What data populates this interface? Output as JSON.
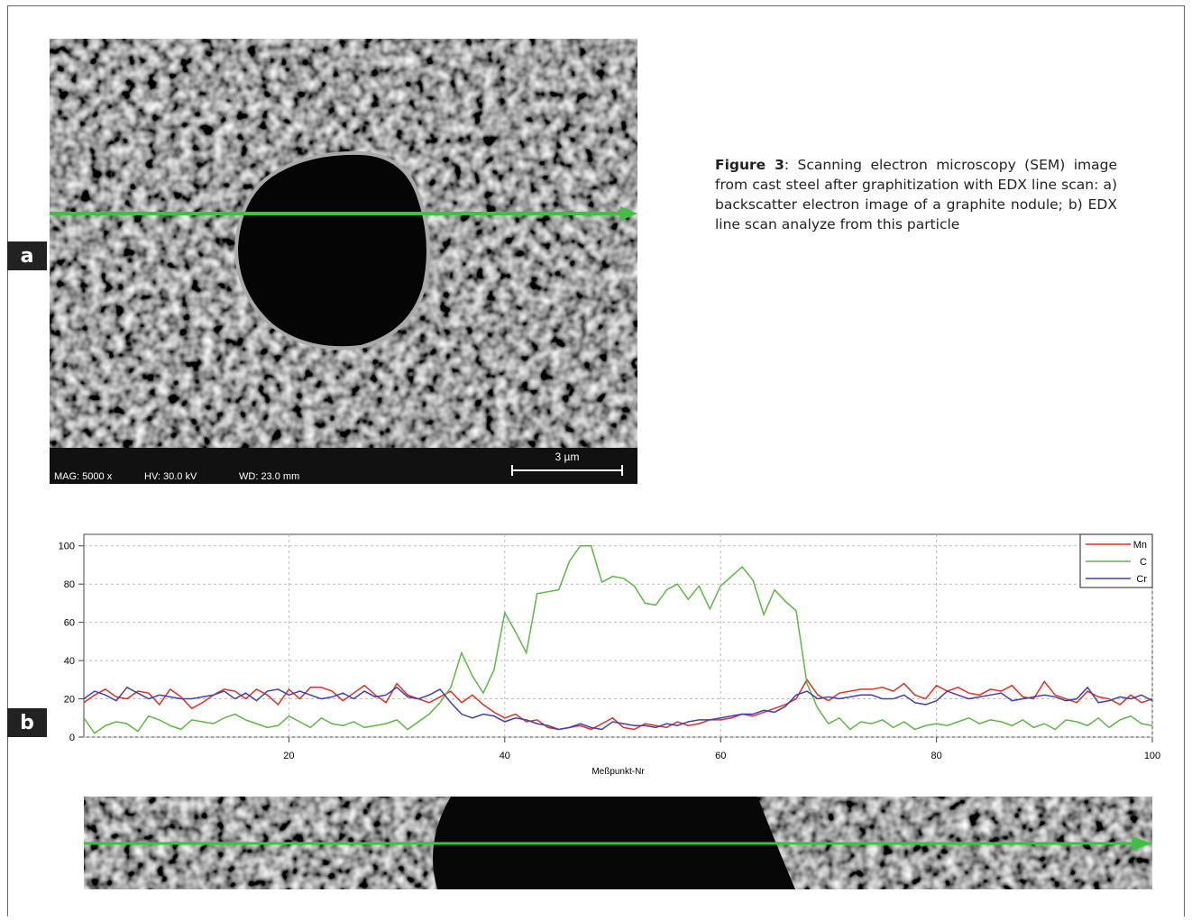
{
  "panel_a": {
    "label": "a",
    "info": [
      "MAG: 5000 x",
      "HV: 30.0 kV",
      "WD: 23.0 mm"
    ],
    "scale_bar": "3 µm"
  },
  "panel_b": {
    "label": "b"
  },
  "caption": {
    "label": "Figure 3",
    "text": ": Scanning electron microscopy (SEM) image from cast steel after graphitization with EDX line scan: a) backscatter electron image of a graphite nodule; b) EDX line scan analyze from this particle"
  },
  "chart_data": {
    "type": "line",
    "x_label": "Meßpunkt-Nr",
    "x": [
      1,
      2,
      3,
      4,
      5,
      6,
      7,
      8,
      9,
      10,
      11,
      12,
      13,
      14,
      15,
      16,
      17,
      18,
      19,
      20,
      21,
      22,
      23,
      24,
      25,
      26,
      27,
      28,
      29,
      30,
      31,
      32,
      33,
      34,
      35,
      36,
      37,
      38,
      39,
      40,
      41,
      42,
      43,
      44,
      45,
      46,
      47,
      48,
      49,
      50,
      51,
      52,
      53,
      54,
      55,
      56,
      57,
      58,
      59,
      60,
      61,
      62,
      63,
      64,
      65,
      66,
      67,
      68,
      69,
      70,
      71,
      72,
      73,
      74,
      75,
      76,
      77,
      78,
      79,
      80,
      81,
      82,
      83,
      84,
      85,
      86,
      87,
      88,
      89,
      90,
      91,
      92,
      93,
      94,
      95,
      96,
      97,
      98,
      99,
      100
    ],
    "series": [
      {
        "name": "Mn",
        "color": "#e03020",
        "values": [
          18,
          22,
          25,
          21,
          20,
          24,
          23,
          17,
          25,
          21,
          15,
          18,
          22,
          25,
          24,
          20,
          25,
          22,
          17,
          25,
          20,
          26,
          26,
          24,
          19,
          23,
          27,
          22,
          18,
          28,
          22,
          20,
          18,
          21,
          24,
          18,
          22,
          17,
          13,
          10,
          12,
          8,
          9,
          5,
          4,
          5,
          6,
          4,
          7,
          10,
          5,
          4,
          7,
          6,
          5,
          8,
          6,
          7,
          9,
          9,
          10,
          12,
          11,
          13,
          15,
          17,
          20,
          30,
          22,
          19,
          23,
          24,
          25,
          25,
          26,
          24,
          28,
          22,
          20,
          27,
          24,
          26,
          23,
          22,
          25,
          24,
          27,
          21,
          20,
          29,
          22,
          20,
          18,
          24,
          21,
          20,
          17,
          22,
          18,
          20
        ]
      },
      {
        "name": "C",
        "color": "#5cb840",
        "values": [
          10,
          2,
          6,
          8,
          7,
          3,
          11,
          9,
          6,
          4,
          9,
          8,
          7,
          10,
          12,
          9,
          7,
          5,
          6,
          11,
          8,
          5,
          10,
          7,
          6,
          8,
          5,
          6,
          7,
          9,
          4,
          8,
          12,
          18,
          26,
          44,
          32,
          23,
          35,
          65,
          55,
          44,
          75,
          76,
          77,
          92,
          100,
          100,
          81,
          84,
          83,
          79,
          70,
          69,
          77,
          80,
          72,
          79,
          67,
          79,
          84,
          89,
          82,
          64,
          77,
          71,
          66,
          28,
          15,
          7,
          10,
          4,
          8,
          7,
          9,
          5,
          8,
          4,
          6,
          7,
          6,
          8,
          10,
          7,
          9,
          8,
          6,
          9,
          5,
          7,
          4,
          9,
          8,
          6,
          10,
          5,
          9,
          11,
          7,
          6
        ]
      },
      {
        "name": "Cr",
        "color": "#4040b0",
        "values": [
          20,
          24,
          22,
          19,
          26,
          23,
          20,
          22,
          21,
          20,
          20,
          21,
          22,
          24,
          20,
          23,
          19,
          24,
          25,
          22,
          24,
          22,
          20,
          21,
          23,
          20,
          24,
          21,
          22,
          26,
          21,
          20,
          22,
          25,
          18,
          12,
          10,
          12,
          11,
          8,
          10,
          9,
          7,
          6,
          4,
          5,
          7,
          5,
          4,
          8,
          7,
          6,
          6,
          5,
          7,
          6,
          8,
          9,
          9,
          10,
          11,
          12,
          12,
          14,
          13,
          16,
          22,
          24,
          20,
          21,
          20,
          21,
          22,
          22,
          20,
          20,
          22,
          18,
          17,
          19,
          24,
          22,
          20,
          21,
          22,
          23,
          19,
          20,
          21,
          22,
          21,
          19,
          20,
          26,
          18,
          19,
          21,
          20,
          22,
          19
        ]
      }
    ],
    "xlim": [
      1,
      100
    ],
    "ylim": [
      0,
      106
    ],
    "xticks": [
      20,
      40,
      60,
      80,
      100
    ],
    "yticks": [
      0,
      20,
      40,
      60,
      80,
      100
    ],
    "grid": true,
    "legend": "top-right"
  }
}
